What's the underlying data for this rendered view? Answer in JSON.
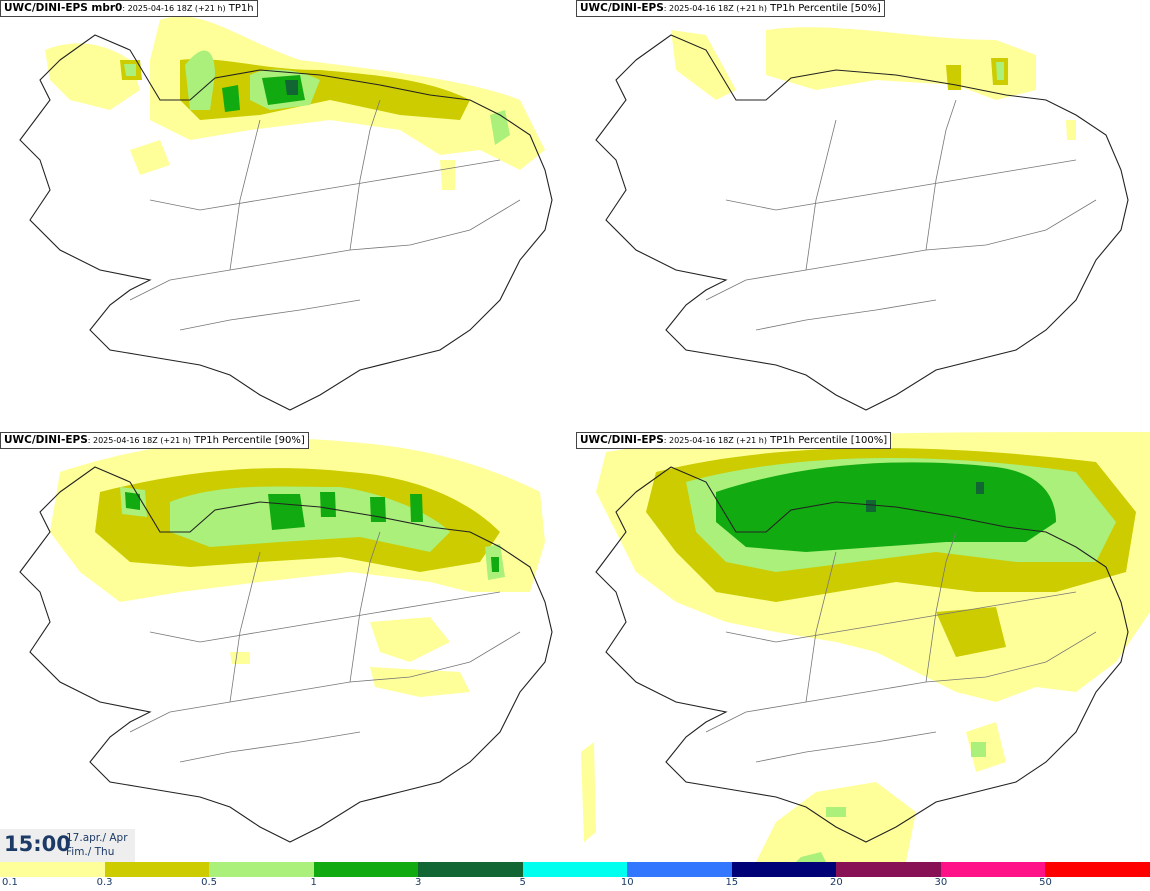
{
  "panels": [
    {
      "model": "UWC/DINI-EPS mbr0",
      "meta": ": 2025-04-16 18Z (+21 h)",
      "product": "TP1h"
    },
    {
      "model": "UWC/DINI-EPS",
      "meta": ": 2025-04-16 18Z (+21 h)",
      "product": "TP1h Percentile [50%]"
    },
    {
      "model": "UWC/DINI-EPS",
      "meta": ": 2025-04-16 18Z (+21 h)",
      "product": "TP1h Percentile [90%]"
    },
    {
      "model": "UWC/DINI-EPS",
      "meta": ": 2025-04-16 18Z (+21 h)",
      "product": "TP1h Percentile [100%]"
    }
  ],
  "valid_time": {
    "time": "15:00",
    "date_line1": "17.apr./ Apr",
    "date_line2": "Fim./ Thu"
  },
  "legend": {
    "labels": [
      "0.1",
      "0.3",
      "0.5",
      "1",
      "3",
      "5",
      "10",
      "15",
      "20",
      "30",
      "50"
    ],
    "colors": [
      "#ffff99",
      "#cccc00",
      "#aaf07a",
      "#11aa11",
      "#116633",
      "#00ffee",
      "#3377ff",
      "#000077",
      "#881155",
      "#ff1188",
      "#ff0000"
    ]
  },
  "colors": {
    "coast": "#222222",
    "roads": "#777777"
  }
}
